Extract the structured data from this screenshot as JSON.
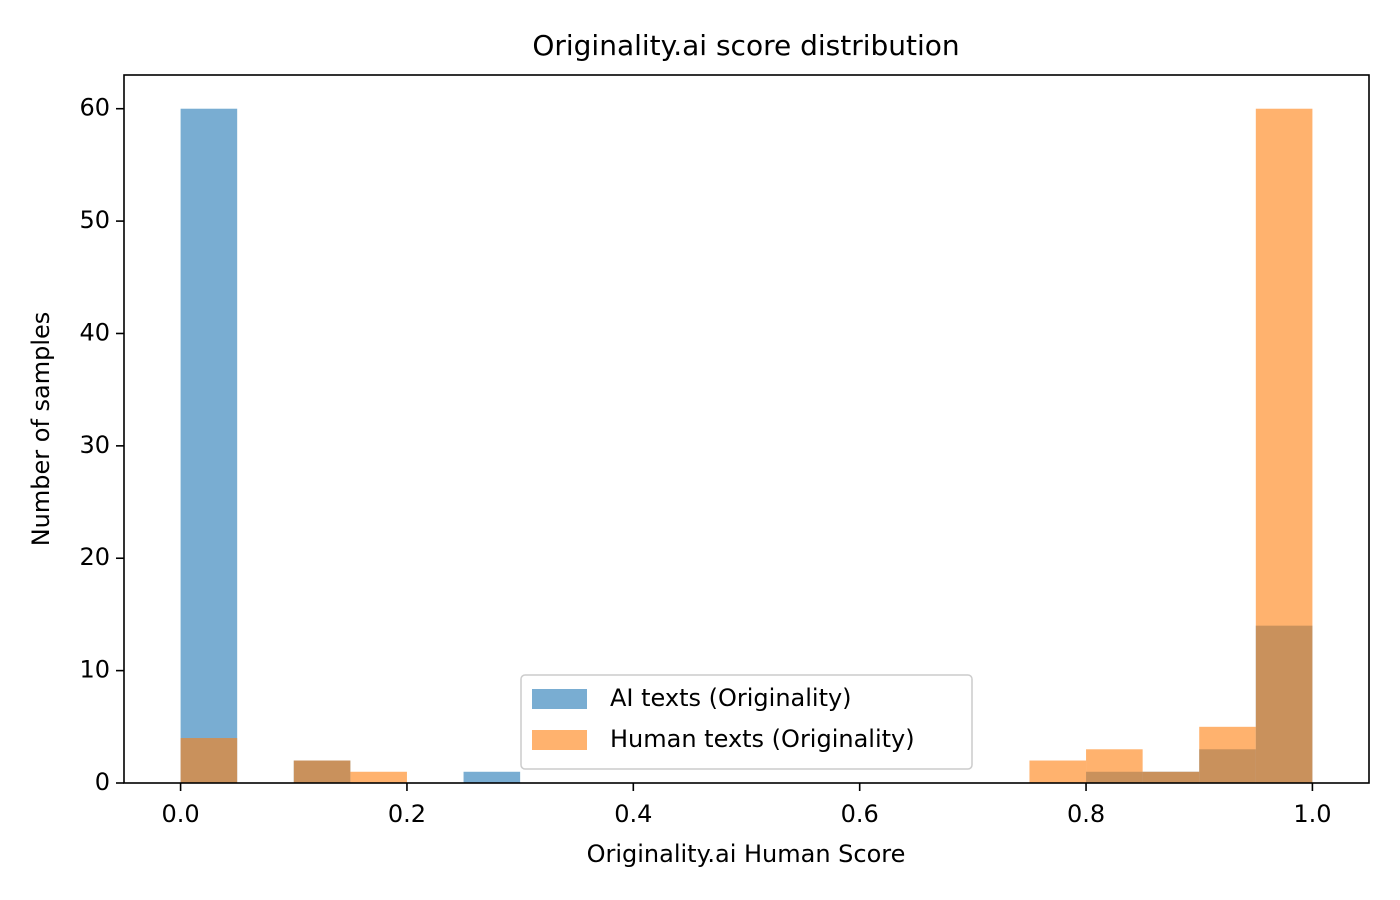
{
  "chart_data": {
    "type": "histogram",
    "title": "Originality.ai score distribution",
    "x_label": "Originality.ai Human Score",
    "y_label": "Number of samples",
    "bins": [
      0,
      0.05,
      0.1,
      0.15,
      0.2,
      0.25,
      0.3,
      0.35,
      0.4,
      0.45,
      0.5,
      0.55,
      0.6,
      0.65,
      0.7,
      0.75,
      0.8,
      0.85,
      0.9,
      0.95,
      1
    ],
    "series": [
      {
        "name": "AI texts (Originality)",
        "color": "#1f77b4",
        "values": [
          60,
          0,
          2,
          0,
          0,
          1,
          0,
          0,
          0,
          0,
          0,
          0,
          0,
          0,
          0,
          0,
          1,
          1,
          3,
          14
        ]
      },
      {
        "name": "Human texts (Originality)",
        "color": "#ff7f0e",
        "values": [
          4,
          0,
          2,
          1,
          0,
          0,
          0,
          0,
          0,
          0,
          0,
          0,
          0,
          0,
          0,
          2,
          3,
          1,
          5,
          60
        ]
      }
    ],
    "opacity": 0.6,
    "xlim": [
      -0.05,
      1.05
    ],
    "ylim": [
      0,
      63
    ],
    "xticks": [
      {
        "value": 0,
        "label": "0.0"
      },
      {
        "value": 0.2,
        "label": "0.2"
      },
      {
        "value": 0.4,
        "label": "0.4"
      },
      {
        "value": 0.6,
        "label": "0.6"
      },
      {
        "value": 0.8,
        "label": "0.8"
      },
      {
        "value": 1,
        "label": "1.0"
      }
    ],
    "yticks": [
      0,
      10,
      20,
      30,
      40,
      50,
      60
    ],
    "legend": "lower center"
  }
}
